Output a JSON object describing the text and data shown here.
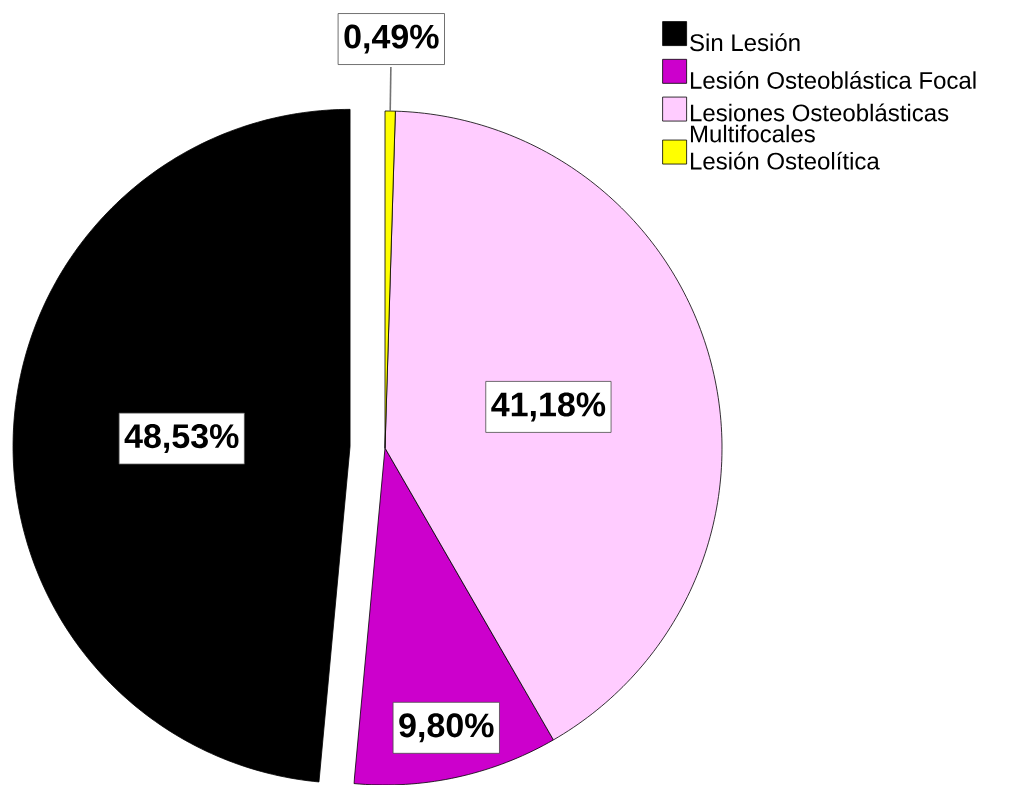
{
  "chart_data": {
    "type": "pie",
    "categories": [
      "Sin Lesión",
      "Lesión Osteoblástica Focal",
      "Lesiones Osteoblásticas Multifocales",
      "Lesión Osteolítica"
    ],
    "values": [
      48.53,
      9.8,
      41.18,
      0.49
    ],
    "colors": [
      "#000000",
      "#cc00cc",
      "#ffccff",
      "#ffff00"
    ],
    "value_labels": [
      "48,53%",
      "9,80%",
      "41,18%",
      "0,49%"
    ],
    "legend": "top right"
  }
}
